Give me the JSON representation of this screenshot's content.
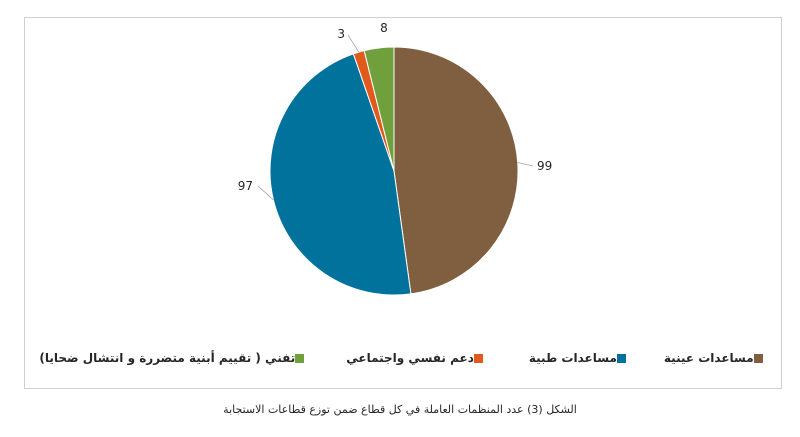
{
  "chart_data": {
    "type": "pie",
    "categories": [
      "مساعدات عينية",
      "مساعدات طبية",
      "دعم نفسي واجتماعي",
      "تفني ( تقييم أبنية متضررة و انتشال ضحايا)"
    ],
    "values": [
      99,
      97,
      3,
      8
    ],
    "colors": [
      "#7f5f3f",
      "#00729b",
      "#e05a1e",
      "#70a03c"
    ],
    "data_labels": [
      "99",
      "97",
      "3",
      "8"
    ],
    "legend_position": "bottom",
    "title": ""
  },
  "caption": "الشكل (3) عدد المنظمات العاملة في كل قطاع ضمن توزع قطاعات الاستجابة"
}
